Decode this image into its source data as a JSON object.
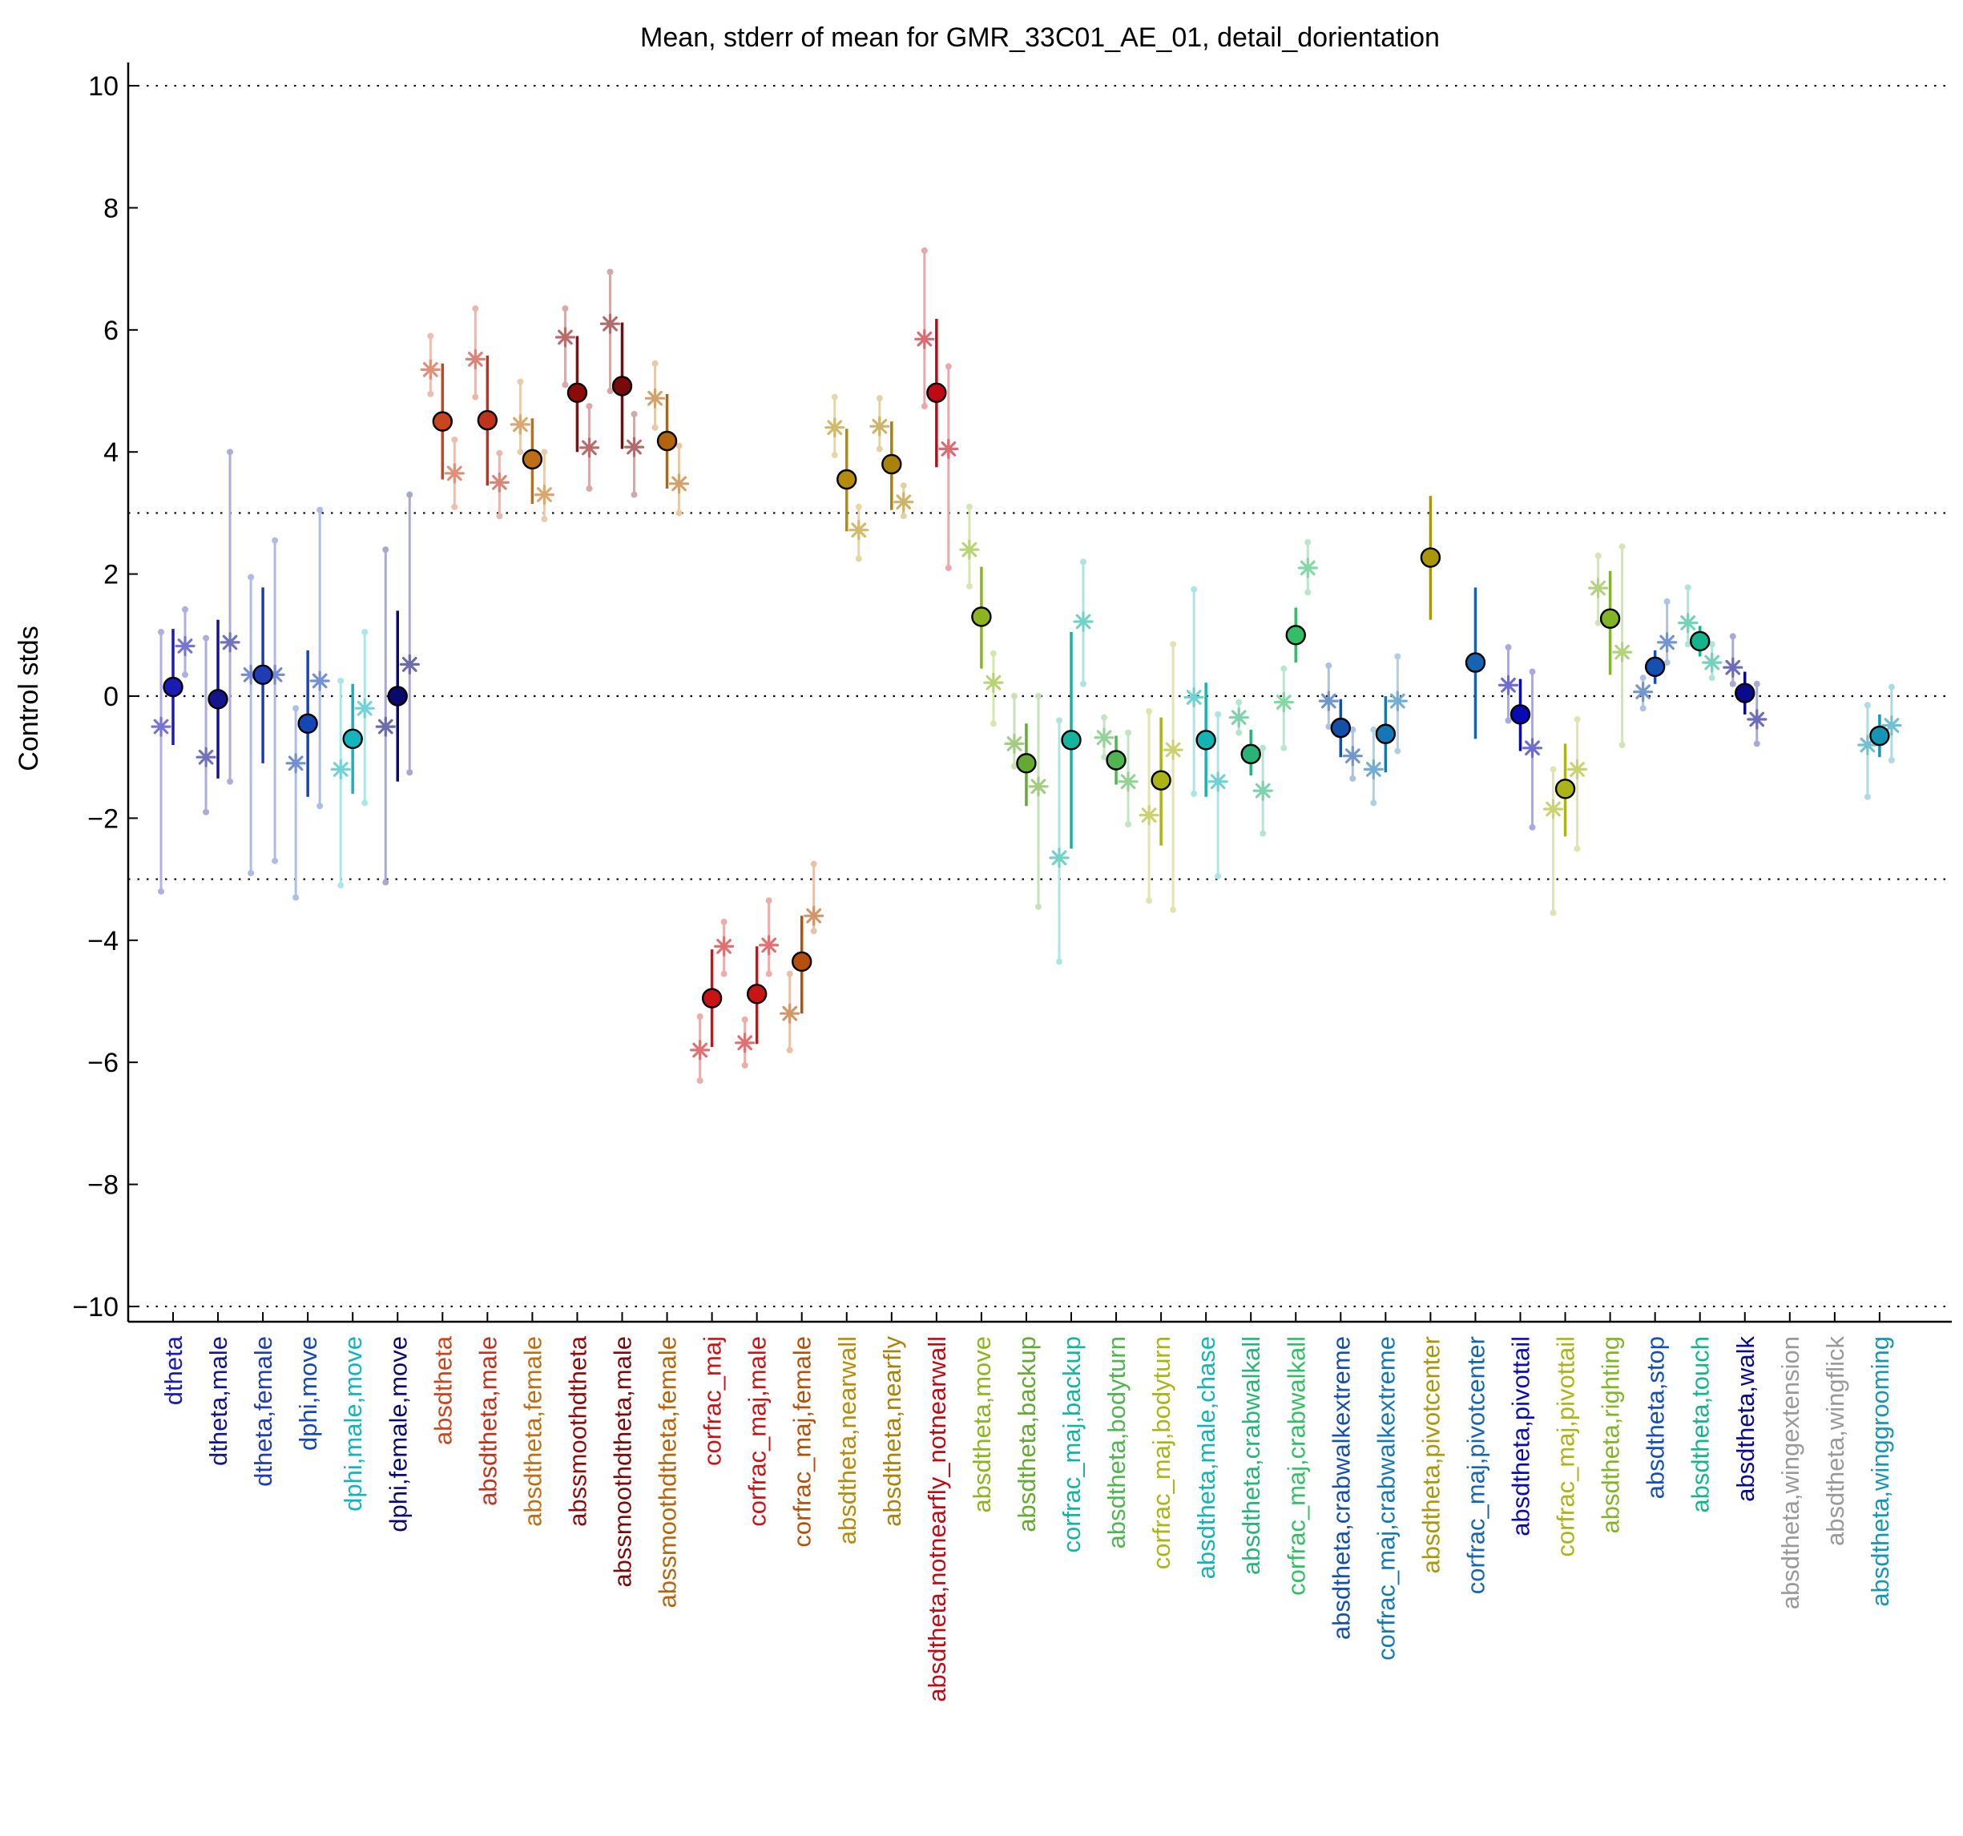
{
  "chart_data": {
    "type": "scatter",
    "title": "Mean, stderr of mean for GMR_33C01_AE_01, detail_dorientation",
    "xlabel": "",
    "ylabel": "Control stds",
    "ylim": [
      -10.25,
      10.25
    ],
    "yticks": [
      -10,
      -8,
      -6,
      -4,
      -2,
      0,
      2,
      4,
      6,
      8,
      10
    ],
    "ytick_labels": [
      "−10",
      "−8",
      "−6",
      "−4",
      "−2",
      "0",
      "2",
      "4",
      "6",
      "8",
      "10"
    ],
    "reference_lines": [
      10,
      3,
      0,
      -3,
      -10
    ],
    "grid": false,
    "legend": "none",
    "categories": [
      "dtheta",
      "dtheta,male",
      "dtheta,female",
      "dphi,move",
      "dphi,male,move",
      "dphi,female,move",
      "absdtheta",
      "absdtheta,male",
      "absdtheta,female",
      "abssmoothdtheta",
      "abssmoothdtheta,male",
      "abssmoothdtheta,female",
      "corfrac_maj",
      "corfrac_maj,male",
      "corfrac_maj,female",
      "absdtheta,nearwall",
      "absdtheta,nearfly",
      "absdtheta,notnearfly_notnearwall",
      "absdtheta,move",
      "absdtheta,backup",
      "corfrac_maj,backup",
      "absdtheta,bodyturn",
      "corfrac_maj,bodyturn",
      "absdtheta,male,chase",
      "absdtheta,crabwalkall",
      "corfrac_maj,crabwalkall",
      "absdtheta,crabwalkextreme",
      "corfrac_maj,crabwalkextreme",
      "absdtheta,pivotcenter",
      "corfrac_maj,pivotcenter",
      "absdtheta,pivottail",
      "corfrac_maj,pivottail",
      "absdtheta,righting",
      "absdtheta,stop",
      "absdtheta,touch",
      "absdtheta,walk",
      "absdtheta,wingextension",
      "absdtheta,wingflick",
      "absdtheta,winggrooming"
    ],
    "colors": [
      "#1a1ab4",
      "#14148c",
      "#1e3cb4",
      "#1446b4",
      "#14b4be",
      "#0a0a6e",
      "#c8461e",
      "#be321e",
      "#be6e14",
      "#8c0a0a",
      "#780a0a",
      "#b4640a",
      "#c81414",
      "#c81414",
      "#b4500a",
      "#b48c0a",
      "#aa820a",
      "#be0a14",
      "#8cb41e",
      "#64aa32",
      "#14b4a0",
      "#50b450",
      "#aab414",
      "#14b4b4",
      "#28b478",
      "#32be64",
      "#1450aa",
      "#1478b4",
      "#aa960a",
      "#1464b4",
      "#0a0ab4",
      "#aab414",
      "#82b428",
      "#1450b4",
      "#14b48c",
      "#0a0a8c",
      "#999999",
      "#999999",
      "#1496b4"
    ],
    "series": [
      {
        "values": [
          0.15,
          -0.05,
          0.35,
          -0.45,
          -0.7,
          0.0,
          4.5,
          4.52,
          3.88,
          4.97,
          5.08,
          4.18,
          -4.95,
          -4.88,
          -4.35,
          3.55,
          3.8,
          4.97,
          1.3,
          -1.1,
          -0.72,
          -1.05,
          -1.38,
          -0.72,
          -0.95,
          1.0,
          -0.52,
          -0.62,
          2.27,
          0.55,
          -0.3,
          -1.52,
          1.27,
          0.48,
          0.9,
          0.05,
          null,
          null,
          -0.65
        ],
        "err_low": [
          -0.8,
          -1.35,
          -1.1,
          -1.65,
          -1.6,
          -1.4,
          3.55,
          3.45,
          3.15,
          4.0,
          4.05,
          3.4,
          -5.75,
          -5.7,
          -5.2,
          2.7,
          3.05,
          3.75,
          0.45,
          -1.8,
          -2.5,
          -1.45,
          -2.45,
          -1.65,
          -1.3,
          0.55,
          -1.0,
          -1.25,
          1.25,
          -0.7,
          -0.9,
          -2.3,
          0.35,
          0.2,
          0.65,
          -0.3,
          null,
          null,
          -1.0
        ],
        "err_high": [
          1.1,
          1.25,
          1.78,
          0.75,
          0.2,
          1.4,
          5.45,
          5.58,
          4.55,
          5.9,
          6.12,
          4.95,
          -4.15,
          -4.1,
          -3.6,
          4.38,
          4.5,
          6.18,
          2.12,
          -0.45,
          1.05,
          -0.65,
          -0.35,
          0.22,
          -0.55,
          1.45,
          -0.05,
          0.0,
          3.28,
          1.78,
          0.28,
          -0.78,
          2.05,
          0.75,
          1.15,
          0.4,
          null,
          null,
          -0.3
        ]
      },
      {
        "values": [
          -0.5,
          -1.0,
          0.35,
          -1.1,
          -1.2,
          -0.5,
          5.35,
          5.52,
          4.45,
          5.88,
          6.1,
          4.88,
          -5.8,
          -5.68,
          -5.2,
          4.4,
          4.42,
          5.85,
          2.4,
          -0.78,
          -2.65,
          -0.68,
          -1.95,
          -0.02,
          -0.35,
          -0.1,
          -0.08,
          -1.2,
          null,
          null,
          0.18,
          -1.85,
          1.77,
          0.07,
          1.2,
          0.47,
          null,
          null,
          -0.8
        ],
        "err_low": [
          -3.2,
          -1.9,
          -2.9,
          -3.3,
          -3.1,
          -3.05,
          4.95,
          4.9,
          4.0,
          5.1,
          5.0,
          4.4,
          -6.3,
          -6.05,
          -5.8,
          3.95,
          4.05,
          4.75,
          1.8,
          -1.15,
          -4.35,
          -1.0,
          -3.35,
          -1.6,
          -0.6,
          -0.85,
          -0.5,
          -1.75,
          null,
          null,
          -0.4,
          -3.55,
          1.2,
          -0.2,
          0.85,
          0.2,
          null,
          null,
          -1.65
        ],
        "err_high": [
          1.05,
          0.95,
          1.95,
          -0.2,
          0.25,
          2.4,
          5.9,
          6.35,
          5.15,
          6.35,
          6.95,
          5.45,
          -5.25,
          -5.3,
          -4.55,
          4.9,
          4.88,
          7.3,
          3.1,
          0.0,
          -0.4,
          -0.35,
          -0.25,
          1.75,
          -0.1,
          0.45,
          0.5,
          -0.55,
          null,
          null,
          0.8,
          -1.2,
          2.3,
          0.3,
          1.78,
          0.98,
          null,
          null,
          -0.15
        ]
      },
      {
        "values": [
          0.82,
          0.88,
          0.35,
          0.25,
          -0.2,
          0.52,
          3.65,
          3.5,
          3.3,
          4.07,
          4.08,
          3.48,
          -4.1,
          -4.08,
          -3.6,
          2.72,
          3.18,
          4.05,
          0.22,
          -1.48,
          1.22,
          -1.4,
          -0.88,
          -1.4,
          -1.55,
          2.1,
          -0.98,
          -0.08,
          null,
          null,
          -0.85,
          -1.2,
          0.72,
          0.88,
          0.55,
          -0.38,
          null,
          null,
          -0.48
        ],
        "err_low": [
          0.35,
          -1.4,
          -2.7,
          -1.8,
          -1.75,
          -1.25,
          3.1,
          2.95,
          2.9,
          3.4,
          3.3,
          3.0,
          -4.55,
          -4.55,
          -3.85,
          2.25,
          2.95,
          2.1,
          -0.45,
          -3.45,
          0.2,
          -2.1,
          -3.5,
          -2.95,
          -2.25,
          1.7,
          -1.35,
          -0.9,
          null,
          null,
          -2.15,
          -2.5,
          -0.8,
          0.55,
          0.3,
          -0.78,
          null,
          null,
          -1.05
        ],
        "err_high": [
          1.42,
          4.0,
          2.55,
          3.05,
          1.05,
          3.3,
          4.2,
          3.98,
          4.0,
          4.75,
          4.62,
          4.1,
          -3.7,
          -3.35,
          -2.75,
          3.1,
          3.45,
          5.4,
          0.7,
          0.0,
          2.2,
          -0.6,
          0.85,
          -0.3,
          -0.85,
          2.52,
          -0.55,
          0.65,
          null,
          null,
          0.4,
          -0.38,
          2.45,
          1.55,
          0.85,
          0.2,
          null,
          null,
          0.15
        ]
      }
    ]
  }
}
